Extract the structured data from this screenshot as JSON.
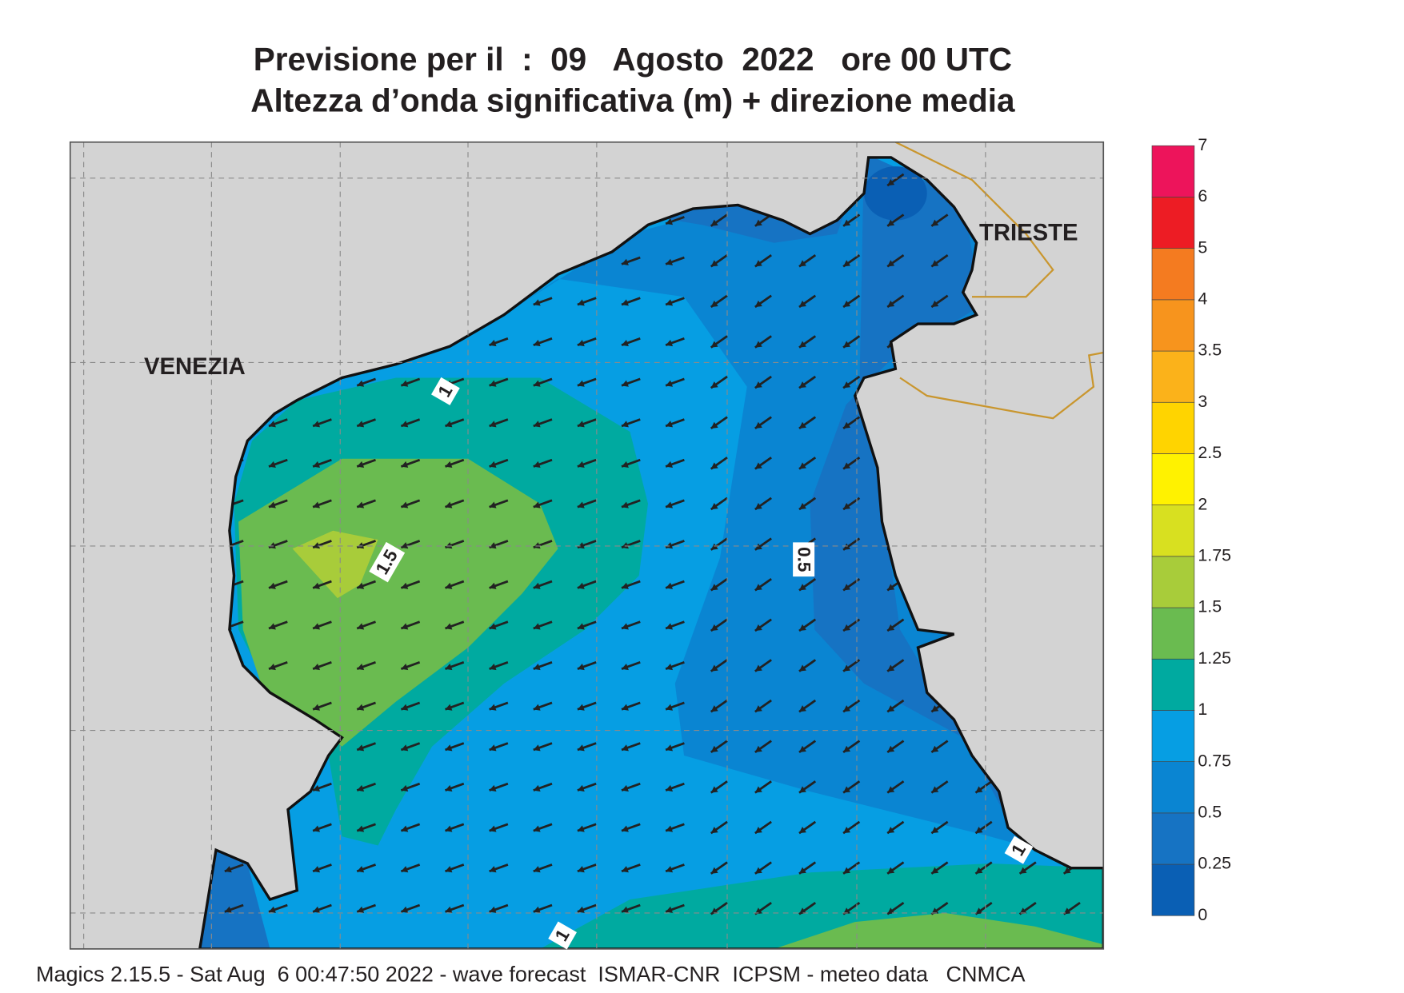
{
  "title": {
    "line1": "Previsione per il  :  09   Agosto  2022   ore 00 UTC",
    "line2": "Altezza d’onda significativa (m) + direzione media"
  },
  "places": {
    "venezia": "VENEZIA",
    "trieste": "TRIESTE"
  },
  "contour_labels": [
    1,
    1.5,
    0.5,
    1,
    1
  ],
  "colorbar": {
    "ticks": [
      0,
      0.25,
      0.5,
      0.75,
      1,
      1.25,
      1.5,
      1.75,
      2,
      2.5,
      3,
      3.5,
      4,
      5,
      6,
      7
    ],
    "colors": [
      "#0a5fb4",
      "#1673c3",
      "#0a85d2",
      "#069ee3",
      "#00aaa0",
      "#6abb50",
      "#a8cc3a",
      "#d8e020",
      "#fff200",
      "#ffd400",
      "#fbb21a",
      "#f7941d",
      "#f47b20",
      "#ed1c24",
      "#ed145b"
    ]
  },
  "footer": "Magics 2.15.5 - Sat Aug  6 00:47:50 2022 - wave forecast  ISMAR-CNR  ICPSM - meteo data   CNMCA"
}
